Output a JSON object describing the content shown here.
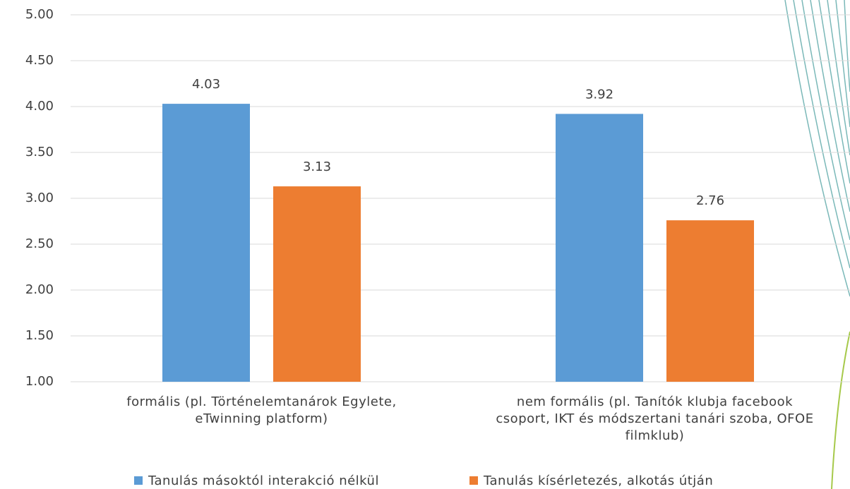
{
  "chart_data": {
    "type": "bar",
    "categories": [
      "formális (pl. Történelemtanárok Egylete, eTwinning platform)",
      "nem formális (pl. Tanítók klubja facebook csoport, IKT és módszertani tanári szoba, OFOE filmklub)"
    ],
    "series": [
      {
        "name": "Tanulás másoktól interakció nélkül",
        "color": "#5b9bd5",
        "values": [
          4.03,
          3.92
        ]
      },
      {
        "name": "Tanulás kísérletezés, alkotás útján",
        "color": "#ed7d31",
        "values": [
          3.13,
          2.76
        ]
      }
    ],
    "ylim": [
      1,
      5
    ],
    "yticks": [
      {
        "value": 1,
        "label": "1.00"
      },
      {
        "value": 1.5,
        "label": "1.50"
      },
      {
        "value": 2,
        "label": "2.00"
      },
      {
        "value": 2.5,
        "label": "2.50"
      },
      {
        "value": 3,
        "label": "3.00"
      },
      {
        "value": 3.5,
        "label": "3.50"
      },
      {
        "value": 4,
        "label": "4.00"
      },
      {
        "value": 4.5,
        "label": "4.50"
      },
      {
        "value": 5,
        "label": "5.00"
      }
    ],
    "grid": true,
    "legend": "bottom"
  }
}
